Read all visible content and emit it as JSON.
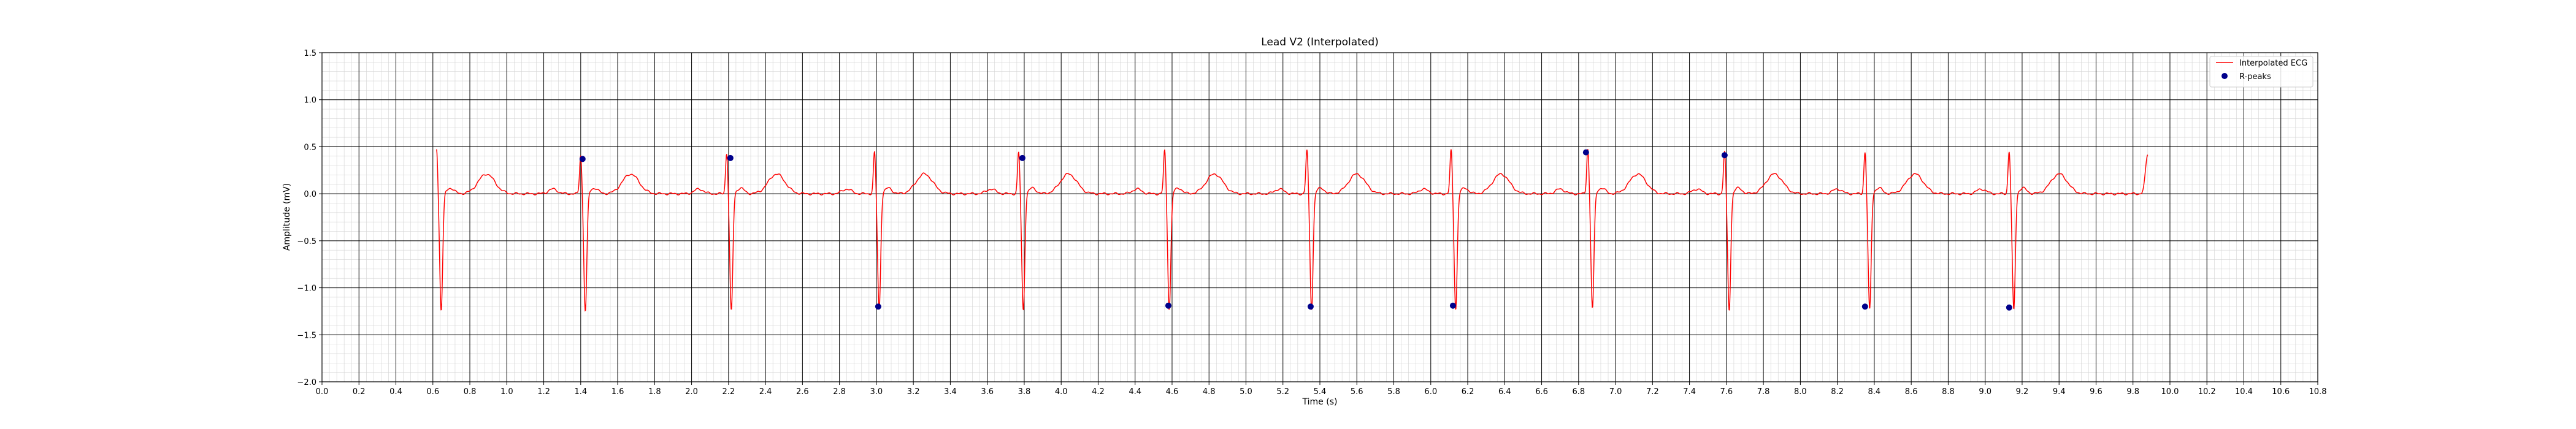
{
  "chart_data": {
    "type": "line",
    "title": "Lead V2 (Interpolated)",
    "xlabel": "Time (s)",
    "ylabel": "Amplitude (mV)",
    "xlim": [
      0.0,
      10.8
    ],
    "ylim": [
      -2.0,
      1.5
    ],
    "grid": "ecg paper (major and minor)",
    "legend_position": "top-right",
    "x_ticks": [
      "0.0",
      "0.2",
      "0.4",
      "0.6",
      "0.8",
      "1.0",
      "1.2",
      "1.4",
      "1.6",
      "1.8",
      "2.0",
      "2.2",
      "2.4",
      "2.6",
      "2.8",
      "3.0",
      "3.2",
      "3.4",
      "3.6",
      "3.8",
      "4.0",
      "4.2",
      "4.4",
      "4.6",
      "4.8",
      "5.0",
      "5.2",
      "5.4",
      "5.6",
      "5.8",
      "6.0",
      "6.2",
      "6.4",
      "6.6",
      "6.8",
      "7.0",
      "7.2",
      "7.4",
      "7.6",
      "7.8",
      "8.0",
      "8.2",
      "8.4",
      "8.6",
      "8.8",
      "9.0",
      "9.2",
      "9.4",
      "9.6",
      "9.8",
      "10.0",
      "10.2",
      "10.4",
      "10.6",
      "10.8"
    ],
    "y_ticks": [
      "1.5",
      "1.0",
      "0.5",
      "0.0",
      "−0.5",
      "−1.0",
      "−1.5",
      "−2.0"
    ],
    "series": [
      {
        "name": "Interpolated ECG",
        "kind": "line",
        "color": "#ff0000",
        "signal_range": [
          0.62,
          9.88
        ],
        "beats": [
          {
            "t": 0.62,
            "r": 0.47,
            "s": -1.22
          },
          {
            "t": 1.4,
            "r": 0.4,
            "s": -1.23
          },
          {
            "t": 2.19,
            "r": 0.42,
            "s": -1.23
          },
          {
            "t": 2.99,
            "r": 0.43,
            "s": -1.22
          },
          {
            "t": 3.77,
            "r": 0.43,
            "s": -1.22
          },
          {
            "t": 4.56,
            "r": 0.45,
            "s": -1.21
          },
          {
            "t": 5.33,
            "r": 0.45,
            "s": -1.21
          },
          {
            "t": 6.11,
            "r": 0.45,
            "s": -1.21
          },
          {
            "t": 6.85,
            "r": 0.47,
            "s": -1.2
          },
          {
            "t": 7.59,
            "r": 0.44,
            "s": -1.22
          },
          {
            "t": 8.35,
            "r": 0.43,
            "s": -1.22
          },
          {
            "t": 9.13,
            "r": 0.44,
            "s": -1.22
          }
        ],
        "t_wave_amp": 0.21,
        "end_value": 0.42
      },
      {
        "name": "R-peaks",
        "kind": "scatter",
        "color": "#00008b",
        "points": [
          {
            "x": 1.41,
            "y": 0.37
          },
          {
            "x": 2.21,
            "y": 0.38
          },
          {
            "x": 3.01,
            "y": -1.2
          },
          {
            "x": 3.79,
            "y": 0.38
          },
          {
            "x": 4.58,
            "y": -1.19
          },
          {
            "x": 5.35,
            "y": -1.2
          },
          {
            "x": 6.12,
            "y": -1.19
          },
          {
            "x": 6.84,
            "y": 0.44
          },
          {
            "x": 7.59,
            "y": 0.41
          },
          {
            "x": 8.35,
            "y": -1.2
          },
          {
            "x": 9.13,
            "y": -1.21
          }
        ]
      }
    ]
  }
}
